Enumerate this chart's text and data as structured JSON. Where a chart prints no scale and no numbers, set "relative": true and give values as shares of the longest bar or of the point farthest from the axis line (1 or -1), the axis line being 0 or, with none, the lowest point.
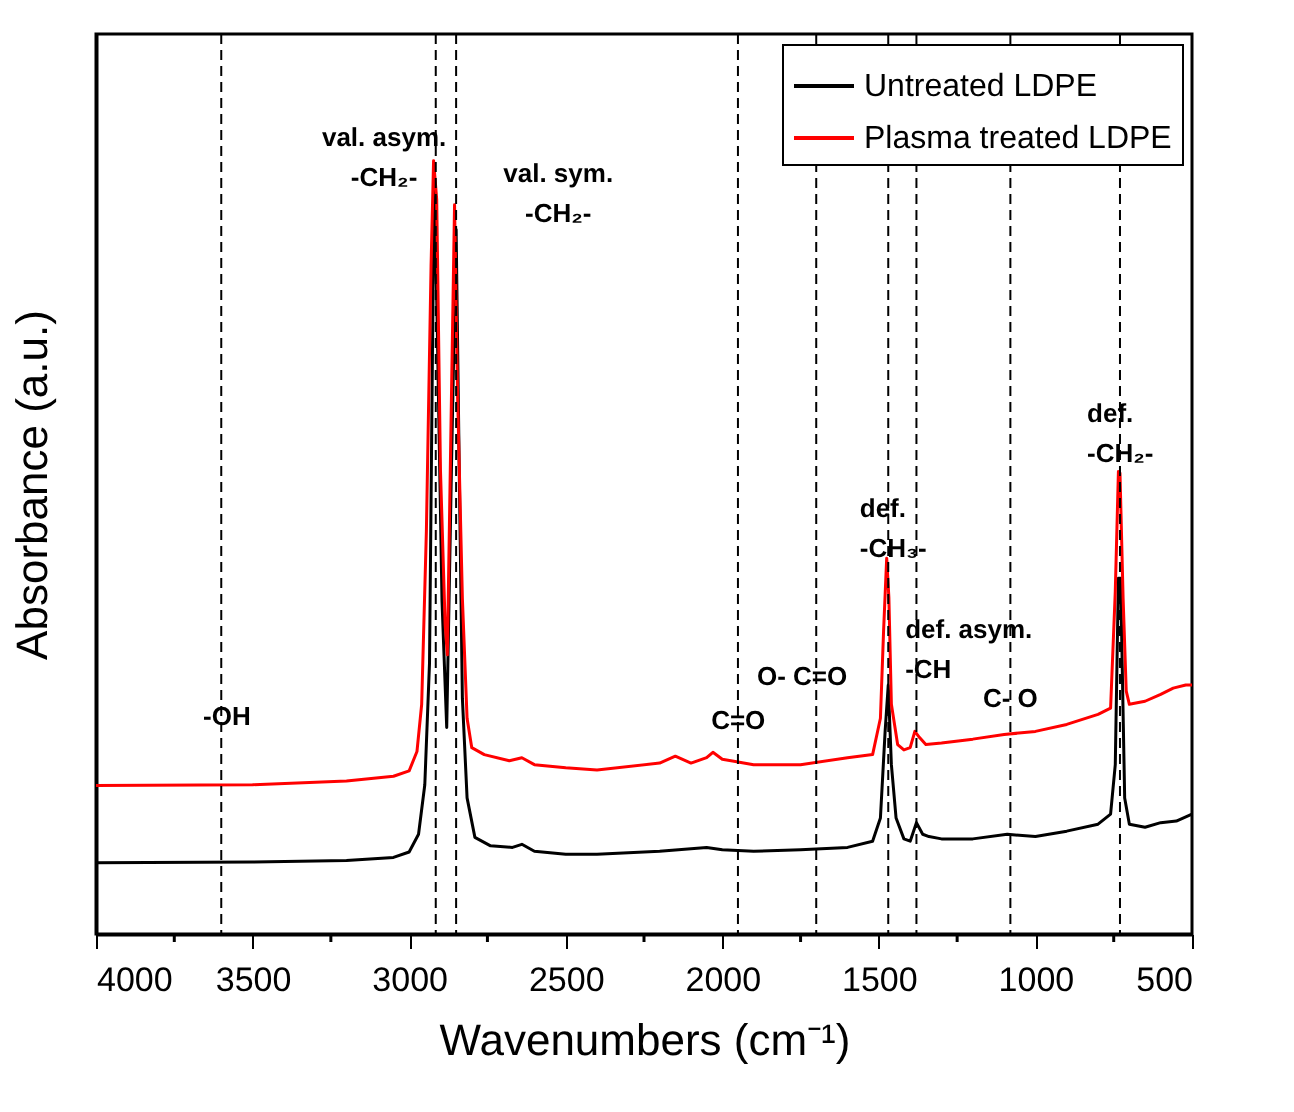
{
  "chart_data": {
    "type": "line",
    "relative": true,
    "xlabel": "Wavenumbers (cm⁻¹)",
    "ylabel": "Absorbance (a.u.)",
    "xlim": [
      4000,
      500
    ],
    "xticks": [
      4000,
      {
        "value": 3750,
        "label": null
      },
      3500,
      {
        "value": 3250,
        "label": null
      },
      3000,
      {
        "value": 2750,
        "label": null
      },
      2500,
      {
        "value": 2250,
        "label": null
      },
      2000,
      {
        "value": 1750,
        "label": null
      },
      1500,
      {
        "value": 1250,
        "label": null
      },
      1000,
      {
        "value": 750,
        "label": null
      },
      500
    ],
    "grid": false,
    "legend": "top right",
    "marker": "none",
    "line_style": "solid",
    "series": [
      {
        "name": "Untreated LDPE",
        "color": "#000000",
        "x": [
          4000,
          3500,
          3200,
          3050,
          3000,
          2970,
          2950,
          2935,
          2920,
          2910,
          2895,
          2880,
          2865,
          2850,
          2840,
          2830,
          2815,
          2790,
          2740,
          2670,
          2640,
          2600,
          2500,
          2400,
          2200,
          2050,
          2000,
          1900,
          1750,
          1600,
          1520,
          1495,
          1480,
          1470,
          1460,
          1445,
          1420,
          1400,
          1380,
          1360,
          1340,
          1300,
          1200,
          1090,
          1000,
          900,
          800,
          760,
          745,
          735,
          728,
          715,
          700,
          650,
          600,
          550,
          500
        ],
        "values": [
          0.092,
          0.093,
          0.095,
          0.099,
          0.106,
          0.129,
          0.193,
          0.35,
          0.985,
          0.78,
          0.43,
          0.267,
          0.6,
          0.911,
          0.6,
          0.305,
          0.176,
          0.125,
          0.114,
          0.112,
          0.116,
          0.107,
          0.103,
          0.103,
          0.107,
          0.112,
          0.109,
          0.107,
          0.109,
          0.112,
          0.12,
          0.15,
          0.262,
          0.322,
          0.219,
          0.15,
          0.123,
          0.12,
          0.144,
          0.129,
          0.126,
          0.123,
          0.123,
          0.129,
          0.126,
          0.133,
          0.142,
          0.155,
          0.219,
          0.46,
          0.46,
          0.176,
          0.142,
          0.138,
          0.144,
          0.146,
          0.155
        ]
      },
      {
        "name": "Plasma treated LDPE",
        "color": "#ff0000",
        "x": [
          4000,
          3500,
          3200,
          3050,
          3000,
          2975,
          2960,
          2945,
          2930,
          2922,
          2912,
          2900,
          2885,
          2878,
          2865,
          2855,
          2845,
          2830,
          2815,
          2800,
          2760,
          2680,
          2640,
          2600,
          2500,
          2400,
          2200,
          2150,
          2100,
          2050,
          2030,
          2000,
          1900,
          1750,
          1600,
          1520,
          1495,
          1485,
          1475,
          1468,
          1460,
          1440,
          1420,
          1400,
          1385,
          1370,
          1350,
          1300,
          1200,
          1100,
          1000,
          900,
          800,
          760,
          745,
          735,
          730,
          720,
          710,
          700,
          650,
          600,
          560,
          520,
          500
        ],
        "values": [
          0.192,
          0.193,
          0.198,
          0.204,
          0.211,
          0.236,
          0.297,
          0.52,
          0.864,
          1.0,
          0.95,
          0.6,
          0.4,
          0.361,
          0.692,
          0.943,
          0.692,
          0.434,
          0.279,
          0.241,
          0.232,
          0.224,
          0.228,
          0.219,
          0.215,
          0.212,
          0.221,
          0.23,
          0.221,
          0.228,
          0.235,
          0.226,
          0.219,
          0.219,
          0.228,
          0.232,
          0.279,
          0.391,
          0.486,
          0.435,
          0.297,
          0.245,
          0.238,
          0.241,
          0.262,
          0.254,
          0.245,
          0.247,
          0.252,
          0.258,
          0.262,
          0.271,
          0.284,
          0.292,
          0.443,
          0.598,
          0.596,
          0.434,
          0.314,
          0.297,
          0.301,
          0.31,
          0.318,
          0.322,
          0.322
        ]
      }
    ],
    "ref_lines": [
      {
        "axis": "x",
        "value": 3600,
        "line_style": "dashed"
      },
      {
        "axis": "x",
        "value": 2915,
        "line_style": "dashed"
      },
      {
        "axis": "x",
        "value": 2850,
        "line_style": "dashed"
      },
      {
        "axis": "x",
        "value": 1950,
        "line_style": "dashed"
      },
      {
        "axis": "x",
        "value": 1700,
        "line_style": "dashed"
      },
      {
        "axis": "x",
        "value": 1470,
        "line_style": "dashed"
      },
      {
        "axis": "x",
        "value": 1380,
        "line_style": "dashed"
      },
      {
        "axis": "x",
        "value": 1080,
        "line_style": "dashed"
      },
      {
        "axis": "x",
        "value": 730,
        "line_style": "dashed"
      }
    ],
    "annotations": [
      {
        "text": "-OH",
        "x": 3582,
        "y": 0.281
      },
      "val. asym.\n-CH₂-",
      "val. sym.\n-CH₂-",
      {
        "text": "C=O",
        "x": 1949,
        "y": 0.275
      },
      "O- C=O",
      "def.\n-CH₃-",
      "def. asym.\n-CH",
      {
        "text": "C- O",
        "x": 1080,
        "y": 0.304
      },
      "def.\n-CH₂-"
    ]
  }
}
